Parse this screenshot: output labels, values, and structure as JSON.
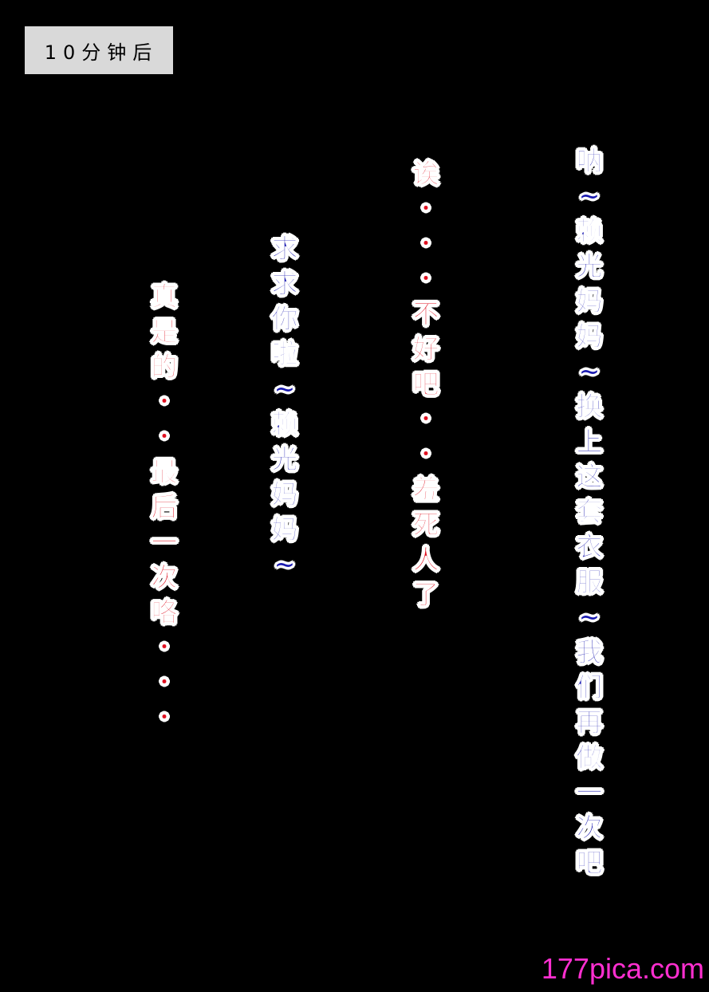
{
  "time_caption": "10分钟后",
  "bubbles": [
    {
      "id": "col1",
      "color": "blue",
      "text": "呐~赖光妈妈~换上这套衣服~我们再做一次吧"
    },
    {
      "id": "col2",
      "color": "red",
      "text": "诶・・・不好吧・・羞死人了"
    },
    {
      "id": "col3",
      "color": "blue",
      "text": "求求你啦~赖光妈妈~"
    },
    {
      "id": "col4",
      "color": "red",
      "text": "真是的・・最后一次咯・・・"
    }
  ],
  "watermark": "177pica.com",
  "colors": {
    "blue_text": "#1a1ab0",
    "red_text": "#e01020",
    "outline": "#ffffff",
    "background": "#000000",
    "caption_box": "#d9d9d9",
    "watermark": "#ff2fd0"
  }
}
